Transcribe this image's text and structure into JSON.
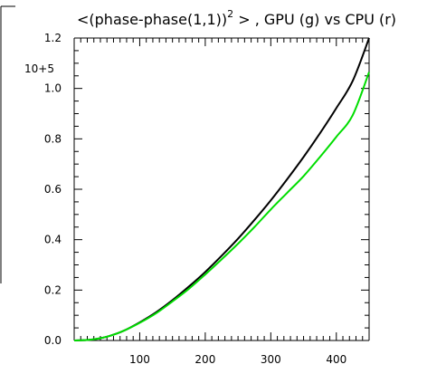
{
  "chart_data": {
    "type": "line",
    "title": {
      "main": "<(phase-phase(1,1))",
      "superscript": "2",
      "rest": " > , GPU (g) vs CPU (r)"
    },
    "y_multiplier_label": "10+5",
    "xlabel": "",
    "ylabel": "",
    "xlim": [
      0,
      450
    ],
    "ylim": [
      0,
      1.2
    ],
    "x_ticks": [
      100,
      200,
      300,
      400
    ],
    "x_tick_labels": [
      "100",
      "200",
      "300",
      "400"
    ],
    "y_ticks": [
      0.0,
      0.2,
      0.4,
      0.6,
      0.8,
      1.0,
      1.2
    ],
    "y_tick_labels": [
      "0.0",
      "0.2",
      "0.4",
      "0.6",
      "0.8",
      "1.0",
      "1.2"
    ],
    "grid": false,
    "series": [
      {
        "color": "#000000",
        "x": [
          0,
          25,
          50,
          75,
          100,
          125,
          150,
          175,
          200,
          225,
          250,
          275,
          300,
          325,
          350,
          375,
          400,
          425,
          450
        ],
        "y": [
          0.0,
          0.003,
          0.015,
          0.038,
          0.072,
          0.112,
          0.16,
          0.214,
          0.272,
          0.336,
          0.404,
          0.478,
          0.556,
          0.64,
          0.728,
          0.822,
          0.922,
          1.03,
          1.2
        ]
      },
      {
        "color": "#00dd00",
        "x": [
          0,
          25,
          50,
          75,
          100,
          125,
          150,
          175,
          200,
          225,
          250,
          275,
          300,
          325,
          350,
          375,
          400,
          425,
          450
        ],
        "y": [
          0.0,
          0.003,
          0.015,
          0.038,
          0.07,
          0.108,
          0.155,
          0.205,
          0.262,
          0.322,
          0.384,
          0.45,
          0.52,
          0.586,
          0.652,
          0.728,
          0.808,
          0.894,
          1.065
        ]
      }
    ]
  }
}
